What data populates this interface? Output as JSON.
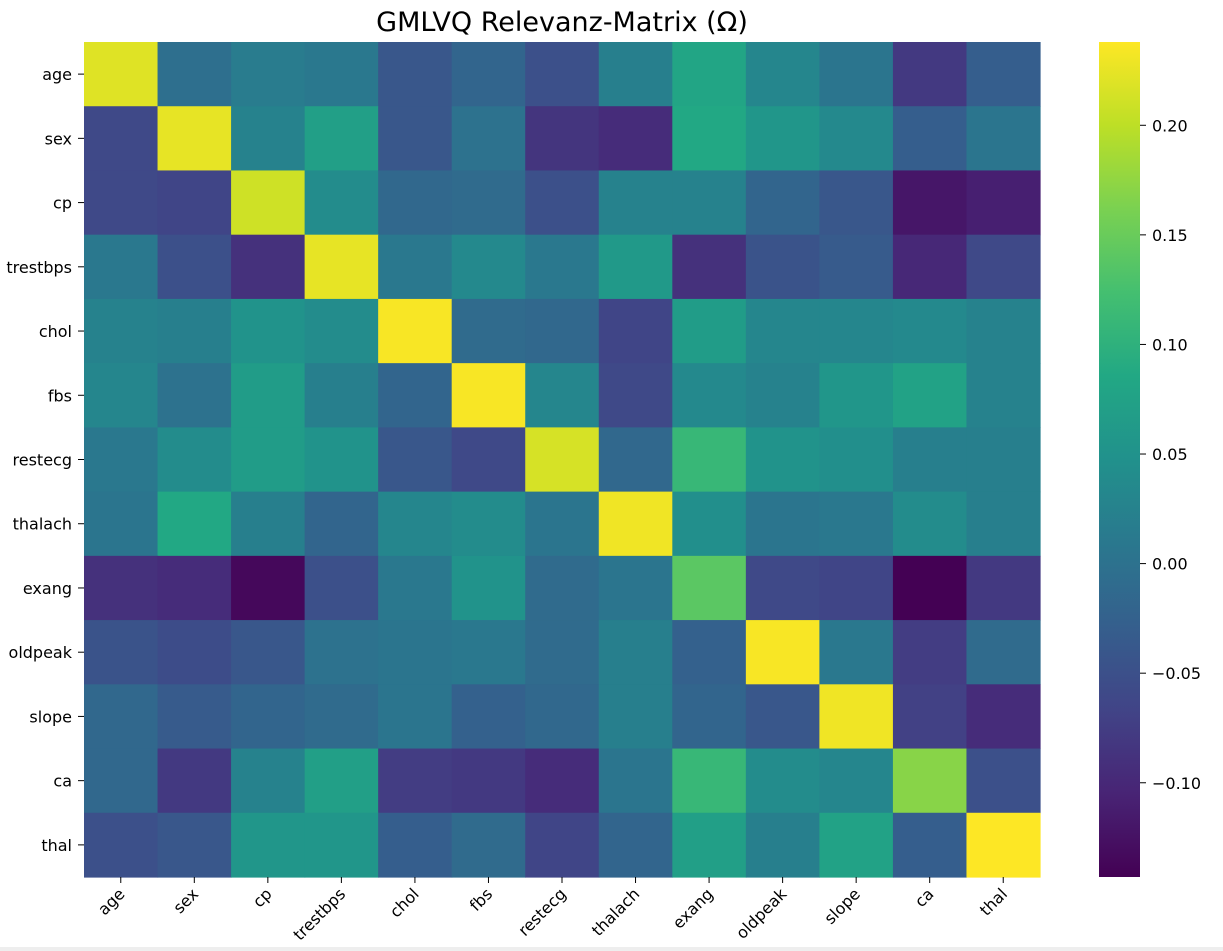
{
  "chart_data": {
    "type": "heatmap",
    "title": "GMLVQ Relevanz-Matrix (Ω)",
    "xlabel": "",
    "ylabel": "",
    "x_labels": [
      "age",
      "sex",
      "cp",
      "trestbps",
      "chol",
      "fbs",
      "restecg",
      "thalach",
      "exang",
      "oldpeak",
      "slope",
      "ca",
      "thal"
    ],
    "y_labels": [
      "age",
      "sex",
      "cp",
      "trestbps",
      "chol",
      "fbs",
      "restecg",
      "thalach",
      "exang",
      "oldpeak",
      "slope",
      "ca",
      "thal"
    ],
    "colormap": "viridis",
    "vmin": -0.143,
    "vmax": 0.238,
    "colorbar": {
      "ticks": [
        -0.1,
        -0.05,
        0.0,
        0.05,
        0.1,
        0.15,
        0.2
      ],
      "tick_labels": [
        "−0.10",
        "−0.05",
        "0.00",
        "0.05",
        "0.10",
        "0.15",
        "0.20"
      ]
    },
    "values": [
      [
        0.22,
        -0.005,
        0.015,
        0.01,
        -0.04,
        -0.02,
        -0.05,
        0.02,
        0.08,
        0.03,
        0.005,
        -0.08,
        -0.03
      ],
      [
        -0.06,
        0.225,
        0.025,
        0.07,
        -0.04,
        0.0,
        -0.085,
        -0.095,
        0.085,
        0.055,
        0.035,
        -0.03,
        0.005
      ],
      [
        -0.06,
        -0.065,
        0.21,
        0.04,
        -0.015,
        -0.01,
        -0.05,
        0.025,
        0.025,
        -0.02,
        -0.04,
        -0.12,
        -0.11
      ],
      [
        0.01,
        -0.05,
        -0.09,
        0.225,
        0.01,
        0.035,
        0.01,
        0.06,
        -0.09,
        -0.045,
        -0.035,
        -0.1,
        -0.06
      ],
      [
        0.025,
        0.02,
        0.05,
        0.04,
        0.235,
        -0.01,
        -0.015,
        -0.065,
        0.065,
        0.03,
        0.03,
        0.035,
        0.025
      ],
      [
        0.03,
        0.0,
        0.065,
        0.02,
        -0.02,
        0.235,
        0.03,
        -0.06,
        0.035,
        0.025,
        0.055,
        0.075,
        0.025
      ],
      [
        0.01,
        0.04,
        0.065,
        0.05,
        -0.04,
        -0.06,
        0.215,
        -0.015,
        0.11,
        0.05,
        0.045,
        0.02,
        0.02
      ],
      [
        0.005,
        0.085,
        0.02,
        -0.02,
        0.03,
        0.04,
        0.005,
        0.23,
        0.045,
        0.005,
        0.01,
        0.04,
        0.02
      ],
      [
        -0.09,
        -0.095,
        -0.135,
        -0.05,
        0.01,
        0.05,
        -0.01,
        0.005,
        0.14,
        -0.06,
        -0.065,
        -0.143,
        -0.08
      ],
      [
        -0.045,
        -0.055,
        -0.04,
        0.0,
        0.005,
        0.01,
        -0.01,
        0.02,
        -0.025,
        0.235,
        0.01,
        -0.075,
        -0.01
      ],
      [
        -0.015,
        -0.035,
        -0.02,
        -0.01,
        0.005,
        -0.025,
        -0.015,
        0.02,
        -0.02,
        -0.04,
        0.23,
        -0.07,
        -0.095
      ],
      [
        -0.015,
        -0.08,
        0.025,
        0.07,
        -0.075,
        -0.08,
        -0.095,
        0.005,
        0.11,
        0.04,
        0.03,
        0.17,
        -0.05
      ],
      [
        -0.05,
        -0.04,
        0.055,
        0.055,
        -0.03,
        -0.01,
        -0.065,
        -0.02,
        0.07,
        0.02,
        0.075,
        -0.03,
        0.238
      ]
    ]
  }
}
